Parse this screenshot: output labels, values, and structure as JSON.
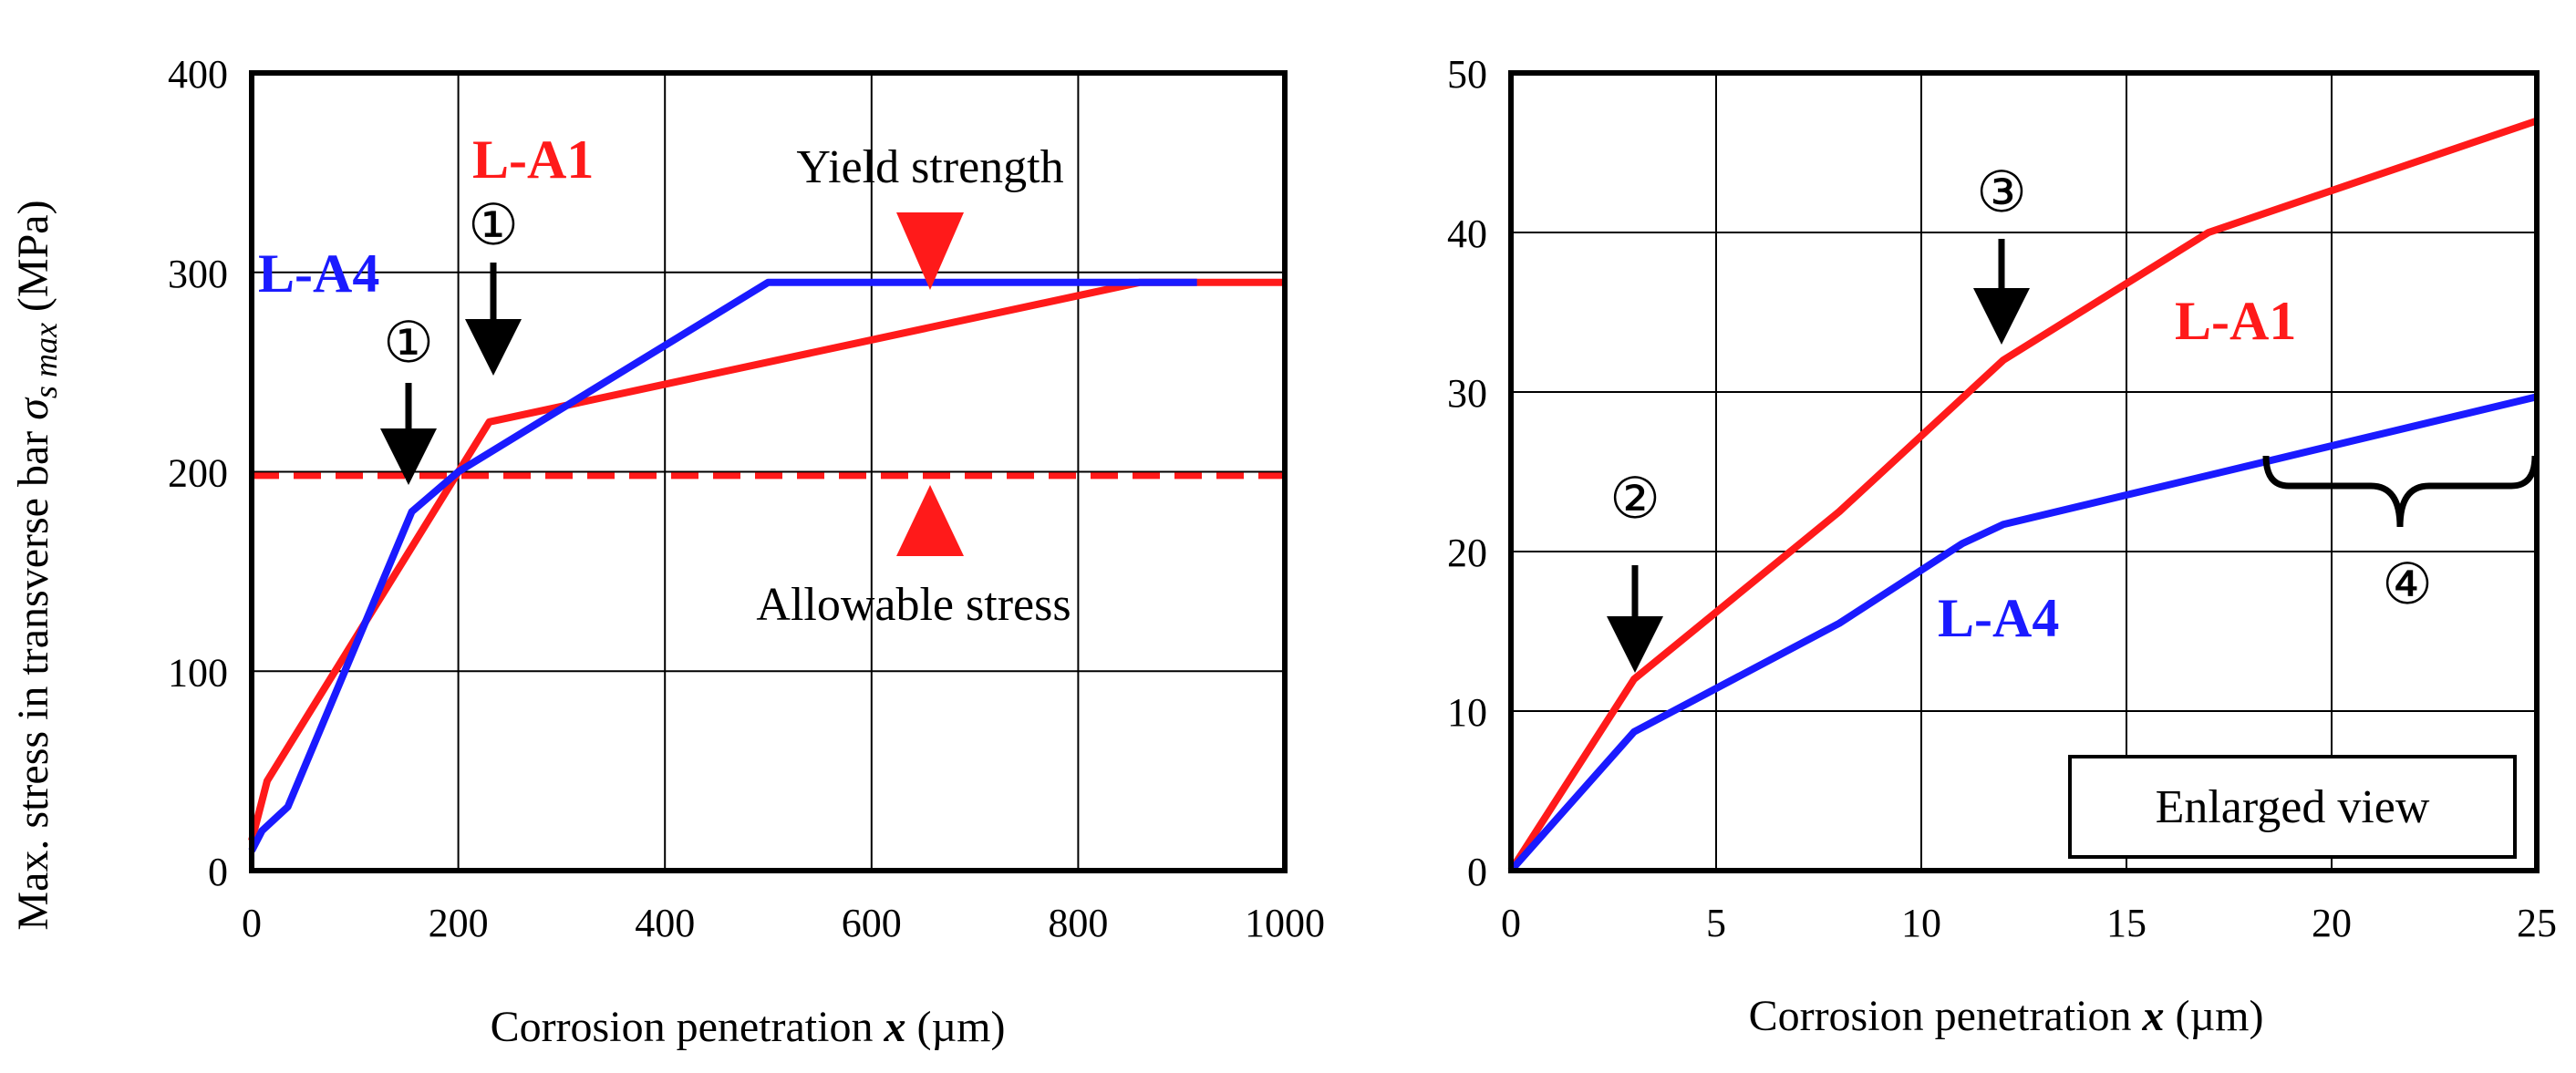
{
  "colors": {
    "l_a1": "#ff1a1a",
    "l_a4": "#1a1aff",
    "axis": "#000000",
    "grid": "#000000"
  },
  "chart_data": [
    {
      "type": "line",
      "xlabel_prefix": "Corrosion penetration ",
      "xlabel_var": "x",
      "xlabel_unit": " (µm)",
      "ylabel_prefix": "Max. stress in transverse bar ",
      "ylabel_sym": "σ",
      "ylabel_sub": "s max",
      "ylabel_unit": " (MPa)",
      "xlim": [
        0,
        1000
      ],
      "ylim": [
        0,
        400
      ],
      "xticks": [
        0,
        200,
        400,
        600,
        800,
        1000
      ],
      "yticks": [
        0,
        100,
        200,
        300,
        400
      ],
      "series": [
        {
          "name": "L-A1",
          "color_key": "l_a1",
          "x": [
            0,
            15,
            230,
            860,
            1000
          ],
          "y": [
            15,
            45,
            225,
            295,
            295
          ]
        },
        {
          "name": "L-A4",
          "color_key": "l_a4",
          "x": [
            0,
            10,
            35,
            155,
            200,
            500,
            915
          ],
          "y": [
            10,
            20,
            32,
            180,
            200,
            295,
            295
          ]
        }
      ],
      "reference_lines": [
        {
          "name": "Allowable stress",
          "y": 198,
          "style": "dashed",
          "color_key": "l_a1"
        }
      ],
      "annotations": {
        "yield_strength": "Yield strength",
        "allowable_stress": "Allowable stress",
        "label_l_a1": "L-A1",
        "label_l_a4": "L-A4",
        "marker_1": "①"
      }
    },
    {
      "type": "line",
      "xlabel_prefix": "Corrosion penetration ",
      "xlabel_var": "x",
      "xlabel_unit": " (µm)",
      "xlim": [
        0,
        25
      ],
      "ylim": [
        0,
        50
      ],
      "xticks": [
        0,
        5,
        10,
        15,
        20,
        25
      ],
      "yticks": [
        0,
        10,
        20,
        30,
        40,
        50
      ],
      "series": [
        {
          "name": "L-A1",
          "color_key": "l_a1",
          "x": [
            0,
            3,
            8,
            12,
            17,
            25
          ],
          "y": [
            0,
            12,
            22.5,
            32,
            40,
            47
          ]
        },
        {
          "name": "L-A4",
          "color_key": "l_a4",
          "x": [
            0,
            3,
            8,
            11,
            12,
            25
          ],
          "y": [
            0,
            8.7,
            15.5,
            20.5,
            21.7,
            29.7
          ]
        }
      ],
      "annotations": {
        "label_l_a1": "L-A1",
        "label_l_a4": "L-A4",
        "marker_2": "②",
        "marker_3": "③",
        "marker_4": "④",
        "inset_label": "Enlarged view"
      }
    }
  ]
}
